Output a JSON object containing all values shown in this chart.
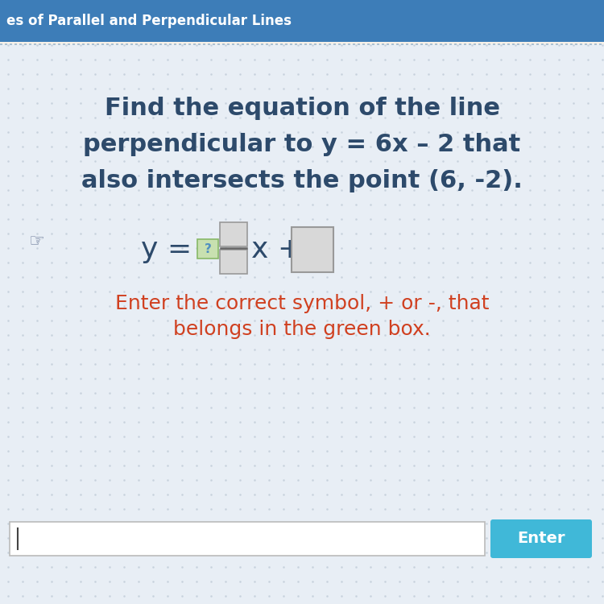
{
  "title_bar_text": "es of Parallel and Perpendicular Lines",
  "title_bar_color": "#3d7db8",
  "title_bar_text_color": "#ffffff",
  "bg_color": "#e8eef5",
  "bg_color_top": "#f5f0e8",
  "main_question_line1": "Find the equation of the line",
  "main_question_line2": "perpendicular to y = 6x – 2 that",
  "main_question_line3": "also intersects the point (6, -2).",
  "main_question_color": "#2d4a6b",
  "equation_color": "#2d4a6b",
  "green_box_color": "#c8e0b0",
  "green_box_border": "#88b868",
  "gray_box_color": "#d8d8d8",
  "gray_box_border": "#999999",
  "question_mark_color": "#5090c0",
  "hint_line1": "Enter the correct symbol, + or -, that",
  "hint_line2": "belongs in the green box.",
  "hint_color": "#d04020",
  "input_box_color": "#ffffff",
  "input_box_border": "#bbbbbb",
  "enter_btn_color": "#40b8d8",
  "enter_btn_text": "Enter",
  "enter_btn_text_color": "#ffffff",
  "dotted_color": "#c0ccd8",
  "main_fontsize": 22,
  "equation_fontsize": 26,
  "hint_fontsize": 18,
  "title_fontsize": 12
}
